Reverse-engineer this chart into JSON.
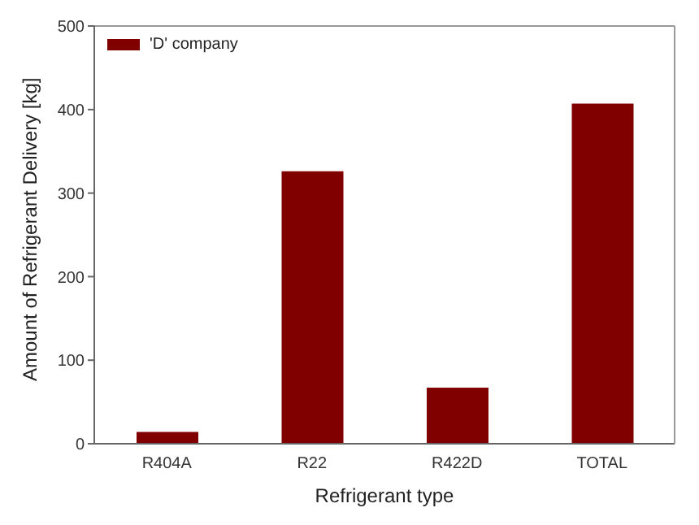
{
  "chart_data": {
    "type": "bar",
    "xlabel": "Refrigerant type",
    "ylabel": "Amount of Refrigerant Delivery [kg]",
    "categories": [
      "R404A",
      "R22",
      "R422D",
      "TOTAL"
    ],
    "series": [
      {
        "name": "'D' company",
        "color": "#800000",
        "values": [
          14,
          326,
          67,
          407
        ]
      }
    ],
    "ylim": [
      0,
      500
    ],
    "yticks": [
      0,
      100,
      200,
      300,
      400,
      500
    ],
    "legend": "top left"
  }
}
